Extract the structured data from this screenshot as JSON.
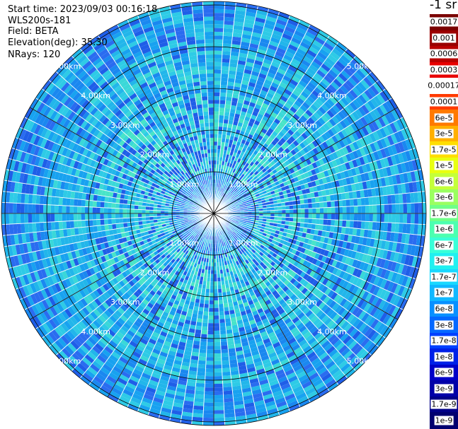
{
  "header": {
    "start_time": "Start time: 2023/09/03 00:16:18",
    "instrument": "WLS200s-181",
    "field": "Field: BETA",
    "elevation": "Elevation(deg): 35.30",
    "nrays": "NRays: 120"
  },
  "colorbar": {
    "unit": "-1 sr",
    "labels": [
      "0.0017",
      "0.001",
      "0.0006",
      "0.0003",
      "0.00017",
      "0.0001",
      "6e-5",
      "3e-5",
      "1.7e-5",
      "1e-5",
      "6e-6",
      "3e-6",
      "1.7e-6",
      "1e-6",
      "6e-7",
      "3e-7",
      "1.7e-7",
      "1e-7",
      "6e-8",
      "3e-8",
      "1.7e-8",
      "1e-8",
      "6e-9",
      "3e-9",
      "1.7e-9",
      "1e-9"
    ],
    "colors": [
      "#7a0000",
      "#9a0000",
      "#b80000",
      "#e80000",
      "#ffffff",
      "#ff3a00",
      "#ff7a00",
      "#ffb000",
      "#ffde00",
      "#e8ff10",
      "#c4ff3a",
      "#9aff60",
      "#70ff88",
      "#4cffb0",
      "#38ffd8",
      "#20f0f0",
      "#18d8ff",
      "#10b8ff",
      "#0890ff",
      "#0468ff",
      "#0040ff",
      "#0020e8",
      "#0000c8",
      "#0000a8",
      "#000088",
      "#000070"
    ]
  },
  "range_rings": {
    "labels": [
      "1.00km",
      "2.00km",
      "3.00km",
      "4.00km",
      "5.00km"
    ]
  }
}
